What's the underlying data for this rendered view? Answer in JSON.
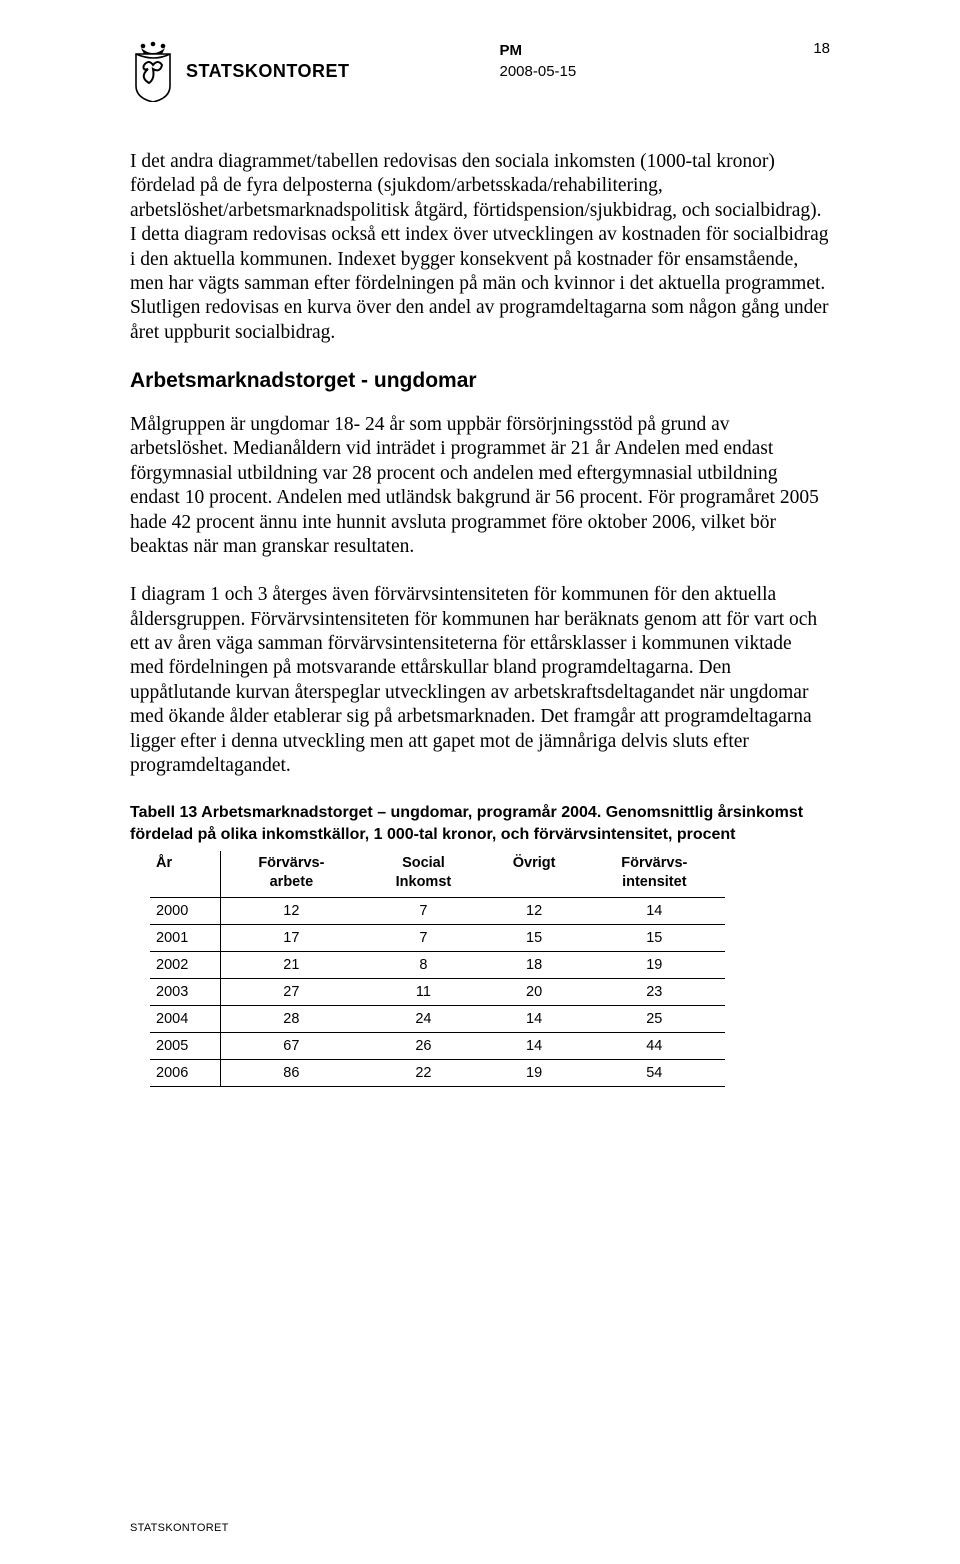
{
  "header": {
    "logo_text": "STATSKONTORET",
    "pm_label": "PM",
    "date": "2008-05-15",
    "page_number": "18"
  },
  "paragraphs": {
    "p1": "I det andra diagrammet/tabellen redovisas den sociala inkomsten (1000-tal kronor) fördelad på de fyra delposterna (sjukdom/arbetsskada/rehabilitering, arbetslöshet/arbetsmarknadspolitisk åtgärd, förtidspension/sjukbidrag, och socialbidrag). I detta diagram redovisas också ett index över utvecklingen av kostnaden för socialbidrag i den aktuella kommunen. Indexet bygger konsekvent på kostnader för ensamstående, men har vägts samman efter fördelningen på män och kvinnor i det aktuella programmet. Slutligen redovisas en kurva över den andel av programdeltagarna som någon gång under året uppburit socialbidrag.",
    "heading": "Arbetsmarknadstorget - ungdomar",
    "p2": "Målgruppen är ungdomar 18- 24 år som uppbär försörjningsstöd på grund av arbetslöshet. Medianåldern vid inträdet i programmet är 21 år Andelen med endast förgymnasial utbildning var 28 procent och andelen med eftergymnasial utbildning endast 10 procent. Andelen med utländsk bakgrund är 56 procent. För programåret 2005 hade 42 procent ännu inte hunnit avsluta programmet före oktober 2006, vilket bör beaktas när man granskar resultaten.",
    "p3": "I diagram 1 och 3 återges även förvärvsintensiteten för kommunen för den aktuella åldersgruppen. Förvärvsintensiteten för kommunen har beräknats genom att för vart och ett av åren väga samman förvärvsintensiteterna för ettårsklasser i kommunen viktade med fördelningen på motsvarande ettårskullar bland programdeltagarna. Den uppåtlutande kurvan återspeglar utvecklingen av arbetskraftsdeltagandet när ungdomar med ökande ålder etablerar sig på arbetsmarknaden. Det framgår att programdeltagarna ligger efter i denna utveckling men att gapet mot de jämnåriga delvis sluts efter programdeltagandet."
  },
  "table": {
    "caption": "Tabell 13 Arbetsmarknadstorget – ungdomar, programår 2004. Genomsnittlig årsinkomst fördelad på olika inkomstkällor, 1 000-tal kronor, och förvärvsintensitet, procent",
    "columns": {
      "c0": "År",
      "c1a": "Förvärvs-",
      "c1b": "arbete",
      "c2a": "Social",
      "c2b": "Inkomst",
      "c3": "Övrigt",
      "c4a": "Förvärvs-",
      "c4b": "intensitet"
    },
    "rows": [
      [
        "2000",
        "12",
        "7",
        "12",
        "14"
      ],
      [
        "2001",
        "17",
        "7",
        "15",
        "15"
      ],
      [
        "2002",
        "21",
        "8",
        "18",
        "19"
      ],
      [
        "2003",
        "27",
        "11",
        "20",
        "23"
      ],
      [
        "2004",
        "28",
        "24",
        "14",
        "25"
      ],
      [
        "2005",
        "67",
        "26",
        "14",
        "44"
      ],
      [
        "2006",
        "86",
        "22",
        "19",
        "54"
      ]
    ]
  },
  "footer": "STATSKONTORET"
}
